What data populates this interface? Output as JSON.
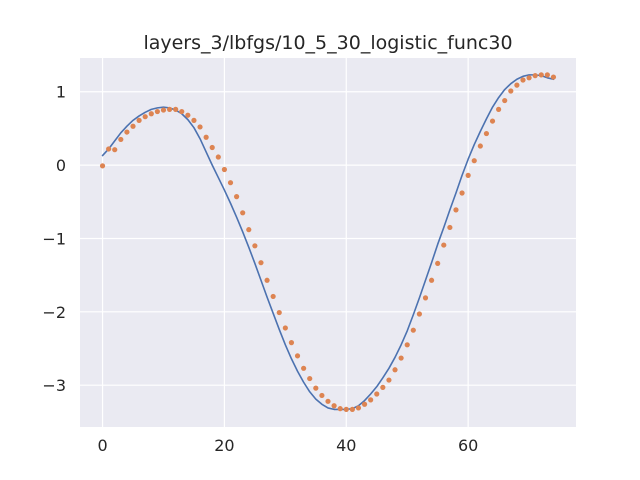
{
  "chart_data": {
    "type": "line",
    "title": "layers_3/lbfgs/10_5_30_logistic_func30",
    "xlabel": "",
    "ylabel": "",
    "xlim": [
      -3.7,
      77.7
    ],
    "ylim": [
      -3.57,
      1.46
    ],
    "x_ticks": [
      0,
      20,
      40,
      60
    ],
    "x_tick_labels": [
      "0",
      "20",
      "40",
      "60"
    ],
    "y_ticks": [
      1,
      0,
      -1,
      -2,
      -3
    ],
    "y_tick_labels": [
      "1",
      "0",
      "−1",
      "−2",
      "−3"
    ],
    "grid": true,
    "background": "#eaeaf2",
    "series": [
      {
        "style": "line",
        "color": "#4c72b0",
        "x": [
          0,
          1,
          2,
          3,
          4,
          5,
          6,
          7,
          8,
          9,
          10,
          11,
          12,
          13,
          14,
          15,
          16,
          17,
          18,
          19,
          20,
          21,
          22,
          23,
          24,
          25,
          26,
          27,
          28,
          29,
          30,
          31,
          32,
          33,
          34,
          35,
          36,
          37,
          38,
          39,
          40,
          41,
          42,
          43,
          44,
          45,
          46,
          47,
          48,
          49,
          50,
          51,
          52,
          53,
          54,
          55,
          56,
          57,
          58,
          59,
          60,
          61,
          62,
          63,
          64,
          65,
          66,
          67,
          68,
          69,
          70,
          71,
          72,
          73,
          74
        ],
        "values": [
          0.13,
          0.22,
          0.33,
          0.44,
          0.53,
          0.61,
          0.67,
          0.72,
          0.76,
          0.78,
          0.79,
          0.78,
          0.75,
          0.7,
          0.62,
          0.51,
          0.36,
          0.18,
          0.0,
          -0.17,
          -0.34,
          -0.52,
          -0.71,
          -0.91,
          -1.12,
          -1.34,
          -1.57,
          -1.8,
          -2.02,
          -2.24,
          -2.45,
          -2.64,
          -2.81,
          -2.96,
          -3.09,
          -3.19,
          -3.26,
          -3.31,
          -3.33,
          -3.33,
          -3.33,
          -3.32,
          -3.28,
          -3.21,
          -3.12,
          -3.02,
          -2.9,
          -2.77,
          -2.62,
          -2.45,
          -2.26,
          -2.04,
          -1.81,
          -1.57,
          -1.33,
          -1.08,
          -0.85,
          -0.61,
          -0.38,
          -0.14,
          0.08,
          0.28,
          0.46,
          0.63,
          0.79,
          0.92,
          1.03,
          1.11,
          1.17,
          1.21,
          1.23,
          1.23,
          1.22,
          1.19,
          1.17
        ]
      },
      {
        "style": "scatter",
        "color": "#dd8452",
        "x": [
          0,
          1,
          2,
          3,
          4,
          5,
          6,
          7,
          8,
          9,
          10,
          11,
          12,
          13,
          14,
          15,
          16,
          17,
          18,
          19,
          20,
          21,
          22,
          23,
          24,
          25,
          26,
          27,
          28,
          29,
          30,
          31,
          32,
          33,
          34,
          35,
          36,
          37,
          38,
          39,
          40,
          41,
          42,
          43,
          44,
          45,
          46,
          47,
          48,
          49,
          50,
          51,
          52,
          53,
          54,
          55,
          56,
          57,
          58,
          59,
          60,
          61,
          62,
          63,
          64,
          65,
          66,
          67,
          68,
          69,
          70,
          71,
          72,
          73,
          74
        ],
        "values": [
          -0.01,
          0.22,
          0.21,
          0.35,
          0.45,
          0.53,
          0.61,
          0.66,
          0.7,
          0.73,
          0.75,
          0.76,
          0.76,
          0.73,
          0.68,
          0.61,
          0.52,
          0.38,
          0.24,
          0.11,
          -0.06,
          -0.24,
          -0.43,
          -0.65,
          -0.88,
          -1.1,
          -1.33,
          -1.57,
          -1.79,
          -2.01,
          -2.22,
          -2.42,
          -2.6,
          -2.77,
          -2.91,
          -3.04,
          -3.14,
          -3.22,
          -3.28,
          -3.32,
          -3.33,
          -3.33,
          -3.31,
          -3.26,
          -3.2,
          -3.12,
          -3.03,
          -2.93,
          -2.79,
          -2.63,
          -2.45,
          -2.25,
          -2.03,
          -1.81,
          -1.57,
          -1.34,
          -1.09,
          -0.85,
          -0.61,
          -0.38,
          -0.14,
          0.06,
          0.26,
          0.43,
          0.6,
          0.76,
          0.88,
          1.01,
          1.09,
          1.16,
          1.19,
          1.22,
          1.23,
          1.23,
          1.2
        ]
      }
    ]
  }
}
